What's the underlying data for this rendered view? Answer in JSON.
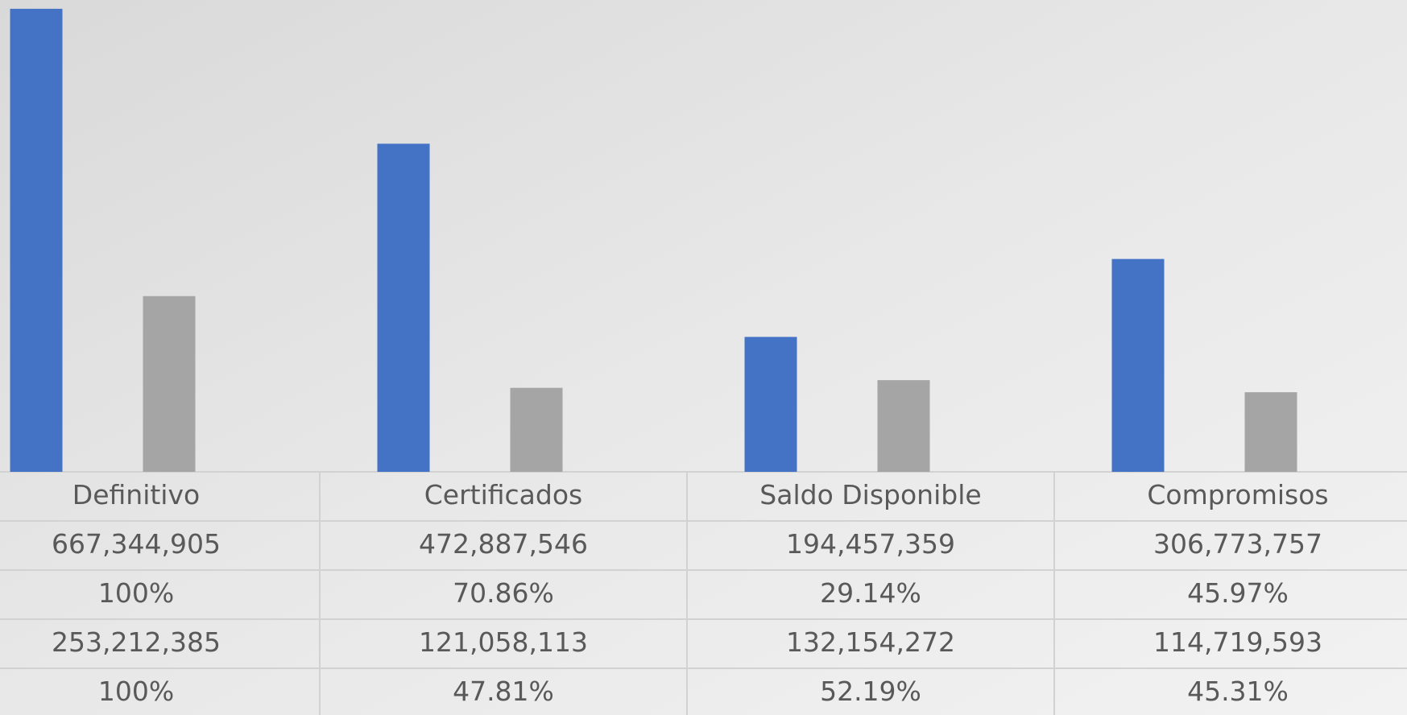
{
  "chart_data": {
    "type": "bar",
    "categories": [
      "Definitivo",
      "Certificados",
      "Saldo Disponible",
      "Compromisos"
    ],
    "series": [
      {
        "color": "#4472c4",
        "values": [
          667344905,
          472887546,
          194457359,
          306773757
        ],
        "value_labels": [
          "667,344,905",
          "472,887,546",
          "194,457,359",
          "306,773,757"
        ],
        "percent_labels": [
          "100%",
          "70.86%",
          "29.14%",
          "45.97%"
        ]
      },
      {
        "color": "#a5a5a5",
        "values": [
          253212385,
          121058113,
          132154272,
          114719593
        ],
        "value_labels": [
          "253,212,385",
          "121,058,113",
          "132,154,272",
          "114,719,593"
        ],
        "percent_labels": [
          "100%",
          "47.81%",
          "52.19%",
          "45.31%"
        ]
      }
    ],
    "ylim": [
      0,
      680000000
    ]
  }
}
